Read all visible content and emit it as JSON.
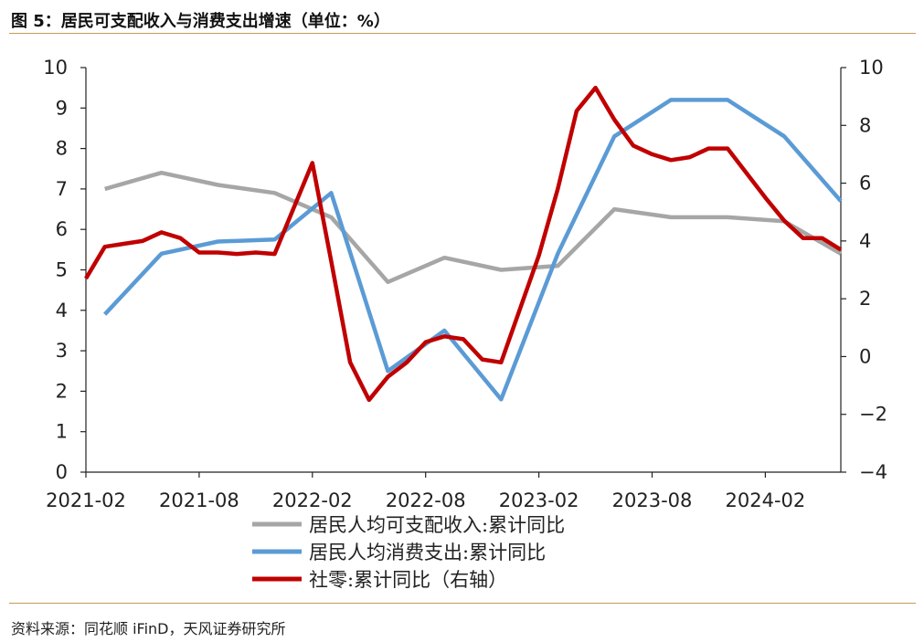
{
  "header": {
    "title": "图 5：居民可支配收入与消费支出增速（单位：%）"
  },
  "footer": {
    "source": "资料来源：同花顺 iFinD，天风证券研究所"
  },
  "chart_data": {
    "type": "line",
    "title": "图 5：居民可支配收入与消费支出增速（单位：%）",
    "x_tick_labels": [
      "2021-02",
      "2021-08",
      "2022-02",
      "2022-08",
      "2023-02",
      "2023-08",
      "2024-02"
    ],
    "y_left": {
      "lim": [
        0,
        10
      ],
      "ticks": [
        0,
        1,
        2,
        3,
        4,
        5,
        6,
        7,
        8,
        9,
        10
      ]
    },
    "y_right": {
      "lim": [
        -4,
        10
      ],
      "ticks": [
        -4,
        -2,
        0,
        2,
        4,
        6,
        8,
        10
      ]
    },
    "grid": false,
    "legend_position": "bottom",
    "series": [
      {
        "name": "居民人均可支配收入:累计同比",
        "axis": "left",
        "color": "#a6a6a6",
        "points": [
          [
            "2021-03",
            7.0
          ],
          [
            "2021-06",
            7.4
          ],
          [
            "2021-09",
            7.1
          ],
          [
            "2021-12",
            6.9
          ],
          [
            "2022-03",
            6.3
          ],
          [
            "2022-06",
            4.7
          ],
          [
            "2022-09",
            5.3
          ],
          [
            "2022-12",
            5.0
          ],
          [
            "2023-03",
            5.1
          ],
          [
            "2023-06",
            6.5
          ],
          [
            "2023-09",
            6.3
          ],
          [
            "2023-12",
            6.3
          ],
          [
            "2024-03",
            6.2
          ],
          [
            "2024-06",
            5.4
          ]
        ]
      },
      {
        "name": "居民人均消费支出:累计同比",
        "axis": "left",
        "color": "#5b9bd5",
        "points": [
          [
            "2021-03",
            3.9
          ],
          [
            "2021-06",
            5.4
          ],
          [
            "2021-09",
            5.7
          ],
          [
            "2021-12",
            5.75
          ],
          [
            "2022-03",
            6.9
          ],
          [
            "2022-06",
            2.5
          ],
          [
            "2022-09",
            3.5
          ],
          [
            "2022-12",
            1.8
          ],
          [
            "2023-03",
            5.4
          ],
          [
            "2023-06",
            8.3
          ],
          [
            "2023-09",
            9.2
          ],
          [
            "2023-12",
            9.2
          ],
          [
            "2024-03",
            8.3
          ],
          [
            "2024-06",
            6.7
          ]
        ]
      },
      {
        "name": "社零:累计同比（右轴）",
        "axis": "right",
        "color": "#c00000",
        "points": [
          [
            "2021-02",
            2.7
          ],
          [
            "2021-03",
            3.8
          ],
          [
            "2021-04",
            3.9
          ],
          [
            "2021-05",
            4.0
          ],
          [
            "2021-06",
            4.3
          ],
          [
            "2021-07",
            4.1
          ],
          [
            "2021-08",
            3.6
          ],
          [
            "2021-09",
            3.6
          ],
          [
            "2021-10",
            3.55
          ],
          [
            "2021-11",
            3.6
          ],
          [
            "2021-12",
            3.55
          ],
          [
            "2022-02",
            6.7
          ],
          [
            "2022-03",
            3.3
          ],
          [
            "2022-04",
            -0.2
          ],
          [
            "2022-05",
            -1.5
          ],
          [
            "2022-06",
            -0.7
          ],
          [
            "2022-07",
            -0.2
          ],
          [
            "2022-08",
            0.5
          ],
          [
            "2022-09",
            0.7
          ],
          [
            "2022-10",
            0.6
          ],
          [
            "2022-11",
            -0.1
          ],
          [
            "2022-12",
            -0.2
          ],
          [
            "2023-02",
            3.5
          ],
          [
            "2023-03",
            5.8
          ],
          [
            "2023-04",
            8.5
          ],
          [
            "2023-05",
            9.3
          ],
          [
            "2023-06",
            8.2
          ],
          [
            "2023-07",
            7.3
          ],
          [
            "2023-08",
            7.0
          ],
          [
            "2023-09",
            6.8
          ],
          [
            "2023-10",
            6.9
          ],
          [
            "2023-11",
            7.2
          ],
          [
            "2023-12",
            7.2
          ],
          [
            "2024-02",
            5.5
          ],
          [
            "2024-03",
            4.7
          ],
          [
            "2024-04",
            4.1
          ],
          [
            "2024-05",
            4.1
          ],
          [
            "2024-06",
            3.7
          ]
        ]
      }
    ]
  }
}
